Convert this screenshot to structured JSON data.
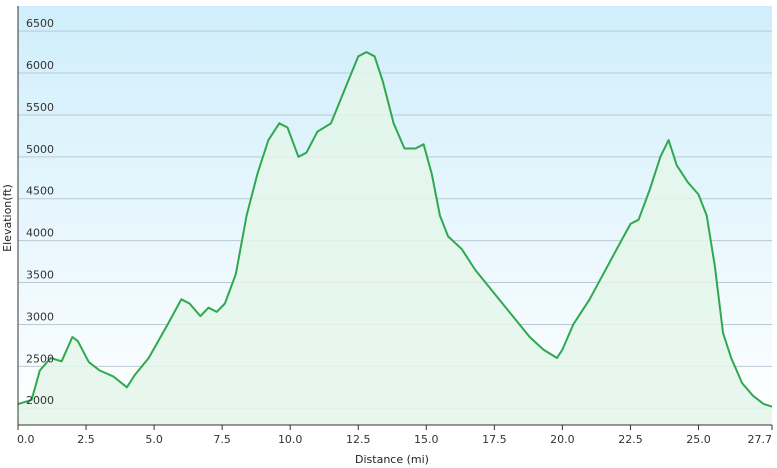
{
  "chart_data": {
    "type": "area",
    "title": "",
    "xlabel": "Distance  (mi)",
    "ylabel": "Elevation(ft)",
    "xlim": [
      0,
      27.7
    ],
    "ylim": [
      1800,
      6800
    ],
    "x_ticks": [
      "0.0",
      "2.5",
      "5.0",
      "7.5",
      "10.0",
      "12.5",
      "15.0",
      "17.5",
      "20.0",
      "22.5",
      "25.0",
      "27.7"
    ],
    "y_ticks": [
      "2000",
      "2500",
      "3000",
      "3500",
      "4000",
      "4500",
      "5000",
      "5500",
      "6000",
      "6500"
    ],
    "grid": true,
    "series": [
      {
        "color": "#2fa84f",
        "fill": "#e4f6ea",
        "x": [
          0,
          0.5,
          0.8,
          1.2,
          1.6,
          2.0,
          2.2,
          2.6,
          3.0,
          3.5,
          4.0,
          4.3,
          4.8,
          5.5,
          6.0,
          6.3,
          6.7,
          7.0,
          7.3,
          7.6,
          8.0,
          8.4,
          8.8,
          9.2,
          9.6,
          9.9,
          10.3,
          10.6,
          11.0,
          11.5,
          12.0,
          12.5,
          12.8,
          13.1,
          13.4,
          13.8,
          14.2,
          14.6,
          14.9,
          15.2,
          15.5,
          15.8,
          16.3,
          16.8,
          17.3,
          17.8,
          18.3,
          18.8,
          19.3,
          19.8,
          20.0,
          20.4,
          21.0,
          21.5,
          22.0,
          22.5,
          22.8,
          23.2,
          23.6,
          23.9,
          24.2,
          24.6,
          25.0,
          25.3,
          25.6,
          25.9,
          26.2,
          26.6,
          27.0,
          27.4,
          27.7
        ],
        "y": [
          2050,
          2100,
          2450,
          2600,
          2560,
          2850,
          2800,
          2550,
          2450,
          2380,
          2250,
          2400,
          2600,
          3000,
          3300,
          3250,
          3100,
          3200,
          3150,
          3250,
          3600,
          4300,
          4800,
          5200,
          5400,
          5350,
          5000,
          5050,
          5300,
          5400,
          5800,
          6200,
          6250,
          6200,
          5900,
          5400,
          5100,
          5100,
          5150,
          4800,
          4300,
          4050,
          3900,
          3650,
          3450,
          3250,
          3050,
          2850,
          2700,
          2600,
          2700,
          3000,
          3300,
          3600,
          3900,
          4200,
          4250,
          4600,
          5000,
          5200,
          4900,
          4700,
          4550,
          4300,
          3700,
          2900,
          2600,
          2300,
          2150,
          2050,
          2020
        ]
      }
    ]
  }
}
